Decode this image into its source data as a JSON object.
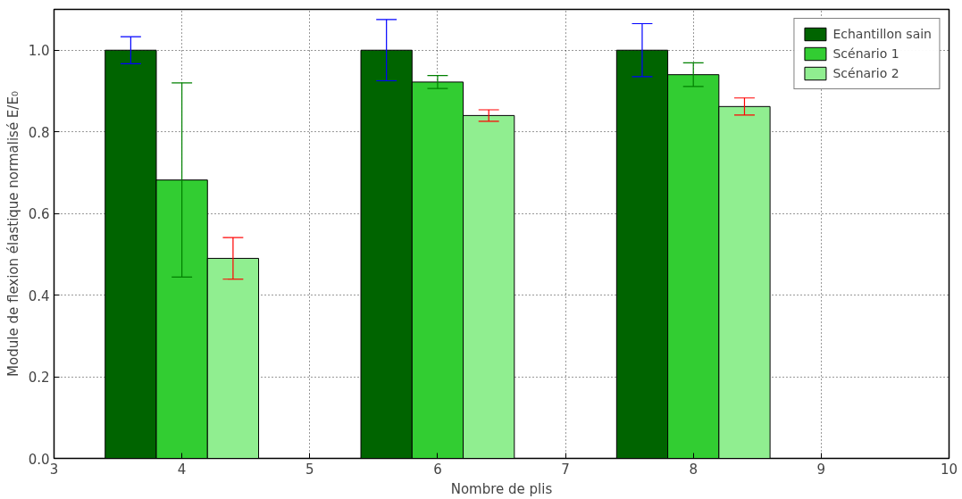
{
  "chart_data": {
    "type": "bar",
    "xlabel": "Nombre de plis",
    "ylabel": "Module de flexion élastique normalisé E/E₀",
    "xlim": [
      3,
      10
    ],
    "xticks": [
      3,
      4,
      5,
      6,
      7,
      8,
      9,
      10
    ],
    "ylim": [
      0,
      1.1
    ],
    "yticks": [
      {
        "value": 0,
        "label": "0.0"
      },
      {
        "value": 0.2,
        "label": "0.2"
      },
      {
        "value": 0.4,
        "label": "0.4"
      },
      {
        "value": 0.6,
        "label": "0.6"
      },
      {
        "value": 0.8,
        "label": "0.8"
      },
      {
        "value": 1.0,
        "label": "1.0"
      }
    ],
    "series": [
      {
        "name": "Echantillon sain",
        "color": "#006400",
        "x": [
          3.6,
          5.6,
          7.6
        ],
        "values": [
          1.0,
          1.0,
          1.0
        ],
        "errors": [
          0.033,
          0.075,
          0.065
        ]
      },
      {
        "name": "Scénario 1",
        "color": "#32cd32",
        "x": [
          4.0,
          6.0,
          8.0
        ],
        "values": [
          0.682,
          0.922,
          0.94
        ],
        "errors": [
          0.238,
          0.016,
          0.029
        ]
      },
      {
        "name": "Scénario 2",
        "color": "#90ee90",
        "x": [
          4.4,
          6.4,
          8.4
        ],
        "values": [
          0.49,
          0.84,
          0.862
        ],
        "errors": [
          0.051,
          0.014,
          0.021
        ]
      }
    ],
    "grid": true,
    "legend": "top right"
  }
}
